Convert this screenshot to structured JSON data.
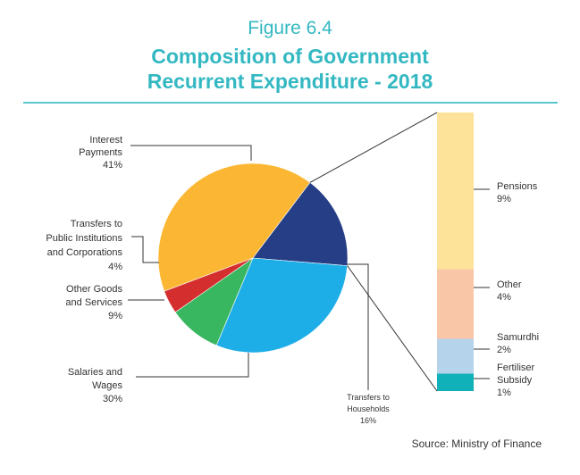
{
  "figure_number": "Figure 6.4",
  "title_line1": "Composition of Government",
  "title_line2": "Recurrent Expenditure - 2018",
  "source": "Source: Ministry of Finance",
  "colors": {
    "accent": "#33b8c2",
    "interest": "#fbb733",
    "transfers_public": "#d42e2f",
    "other_goods": "#39b660",
    "salaries": "#1daee8",
    "households": "#263e86",
    "pensions": "#fde39a",
    "other": "#f9c6a8",
    "samurdhi": "#b6d3ec",
    "fertiliser": "#10b1b8"
  },
  "chart_data": [
    {
      "type": "pie",
      "title": "Composition of Government Recurrent Expenditure - 2018",
      "slices": [
        {
          "label_lines": [
            "Interest",
            "Payments"
          ],
          "pct_label": "41%",
          "value": 41,
          "color_key": "interest"
        },
        {
          "label_lines": [
            "Transfers to",
            "Households"
          ],
          "pct_label": "16%",
          "value": 16,
          "color_key": "households"
        },
        {
          "label_lines": [
            "Salaries and",
            "Wages"
          ],
          "pct_label": "30%",
          "value": 30,
          "color_key": "salaries"
        },
        {
          "label_lines": [
            "Other Goods",
            "and Services"
          ],
          "pct_label": "9%",
          "value": 9,
          "color_key": "other_goods"
        },
        {
          "label_lines": [
            "Transfers to",
            "Public Institutions",
            "and Corporations"
          ],
          "pct_label": "4%",
          "value": 4,
          "color_key": "transfers_public"
        }
      ]
    },
    {
      "type": "bar",
      "stacked": true,
      "breakdown_of": "Transfers to Households",
      "segments": [
        {
          "label_lines": [
            "Pensions"
          ],
          "pct_label": "9%",
          "value": 9,
          "color_key": "pensions"
        },
        {
          "label_lines": [
            "Other"
          ],
          "pct_label": "4%",
          "value": 4,
          "color_key": "other"
        },
        {
          "label_lines": [
            "Samurdhi"
          ],
          "pct_label": "2%",
          "value": 2,
          "color_key": "samurdhi"
        },
        {
          "label_lines": [
            "Fertiliser",
            "Subsidy"
          ],
          "pct_label": "1%",
          "value": 1,
          "color_key": "fertiliser"
        }
      ]
    }
  ]
}
